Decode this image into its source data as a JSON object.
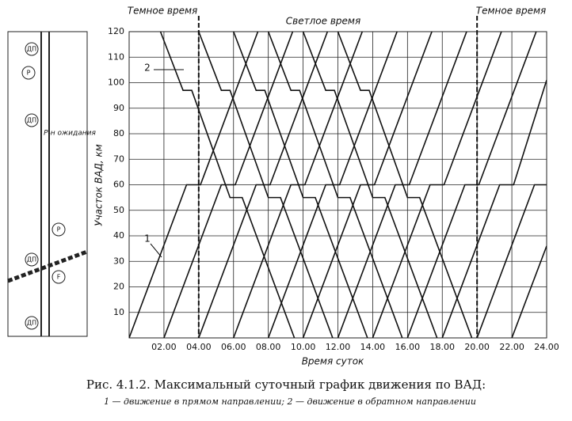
{
  "chart_data": {
    "type": "line",
    "header_left": "Темное время",
    "header_center": "Светлое время",
    "header_right": "Темное время",
    "ylabel": "Участок ВАД, км",
    "xlabel": "Время суток",
    "caption": "Рис. 4.1.2. Максимальный суточный график движения по ВАД:",
    "legend_text": "1 — движение в прямом направлении; 2 — движение в обратном направлении",
    "marker_forward": "1",
    "marker_reverse": "2",
    "xlim": [
      0,
      24
    ],
    "ylim": [
      0,
      120
    ],
    "xticks": [
      {
        "value": 2,
        "label": "02.00"
      },
      {
        "value": 4,
        "label": "04.00"
      },
      {
        "value": 6,
        "label": "06.00"
      },
      {
        "value": 8,
        "label": "08.00"
      },
      {
        "value": 10,
        "label": "10.00"
      },
      {
        "value": 12,
        "label": "12.00"
      },
      {
        "value": 14,
        "label": "14.00"
      },
      {
        "value": 16,
        "label": "16.00"
      },
      {
        "value": 18,
        "label": "18.00"
      },
      {
        "value": 20,
        "label": "20.00"
      },
      {
        "value": 22,
        "label": "22.00"
      },
      {
        "value": 24,
        "label": "24.00"
      }
    ],
    "yticks": [
      10,
      20,
      30,
      40,
      50,
      60,
      70,
      80,
      90,
      100,
      110,
      120
    ],
    "grid": true,
    "color": "#111111",
    "dark_time_bounds": [
      4,
      20
    ],
    "series": [
      {
        "x": [
          0,
          3.3,
          4.1,
          7.4
        ],
        "values": [
          0,
          60,
          60,
          120
        ]
      },
      {
        "x": [
          2,
          5.3,
          6.1,
          9.4
        ],
        "values": [
          0,
          60,
          60,
          120
        ]
      },
      {
        "x": [
          4,
          7.3,
          8.1,
          11.4
        ],
        "values": [
          0,
          60,
          60,
          120
        ]
      },
      {
        "x": [
          6,
          9.3,
          10.1,
          13.4
        ],
        "values": [
          0,
          60,
          60,
          120
        ]
      },
      {
        "x": [
          8,
          11.3,
          12.1,
          15.4
        ],
        "values": [
          0,
          60,
          60,
          120
        ]
      },
      {
        "x": [
          10,
          13.3,
          14.1,
          17.4
        ],
        "values": [
          0,
          60,
          60,
          120
        ]
      },
      {
        "x": [
          12,
          15.3,
          16.1,
          19.4
        ],
        "values": [
          0,
          60,
          60,
          120
        ]
      },
      {
        "x": [
          14,
          17.3,
          18.1,
          21.4
        ],
        "values": [
          0,
          60,
          60,
          120
        ]
      },
      {
        "x": [
          16,
          19.3,
          20.1,
          23.4
        ],
        "values": [
          0,
          60,
          60,
          120
        ]
      },
      {
        "x": [
          18,
          21.3,
          22.1,
          24
        ],
        "values": [
          0,
          60,
          60,
          101
        ]
      },
      {
        "x": [
          20,
          23.3,
          24
        ],
        "values": [
          0,
          60,
          60
        ]
      },
      {
        "x": [
          22,
          24
        ],
        "values": [
          0,
          36
        ]
      },
      {
        "x": [
          1.8,
          3.1,
          3.6,
          5.8,
          6.5,
          9.5
        ],
        "values": [
          120,
          97,
          97,
          55,
          55,
          0
        ]
      },
      {
        "x": [
          4,
          5.3,
          5.8,
          8,
          8.7,
          11.7
        ],
        "values": [
          120,
          97,
          97,
          55,
          55,
          0
        ]
      },
      {
        "x": [
          6,
          7.3,
          7.8,
          10,
          10.7,
          13.7
        ],
        "values": [
          120,
          97,
          97,
          55,
          55,
          0
        ]
      },
      {
        "x": [
          8,
          9.3,
          9.8,
          12,
          12.7,
          15.7
        ],
        "values": [
          120,
          97,
          97,
          55,
          55,
          0
        ]
      },
      {
        "x": [
          10,
          11.3,
          11.8,
          14,
          14.7,
          17.7
        ],
        "values": [
          120,
          97,
          97,
          55,
          55,
          0
        ]
      },
      {
        "x": [
          12,
          13.3,
          13.8,
          16,
          16.7,
          19.7
        ],
        "values": [
          120,
          97,
          97,
          55,
          55,
          0
        ]
      }
    ]
  },
  "schematic": {
    "label_dp": "ДП",
    "label_r": "Р",
    "label_f": "F",
    "label_zone": "Р-н ожидания"
  }
}
